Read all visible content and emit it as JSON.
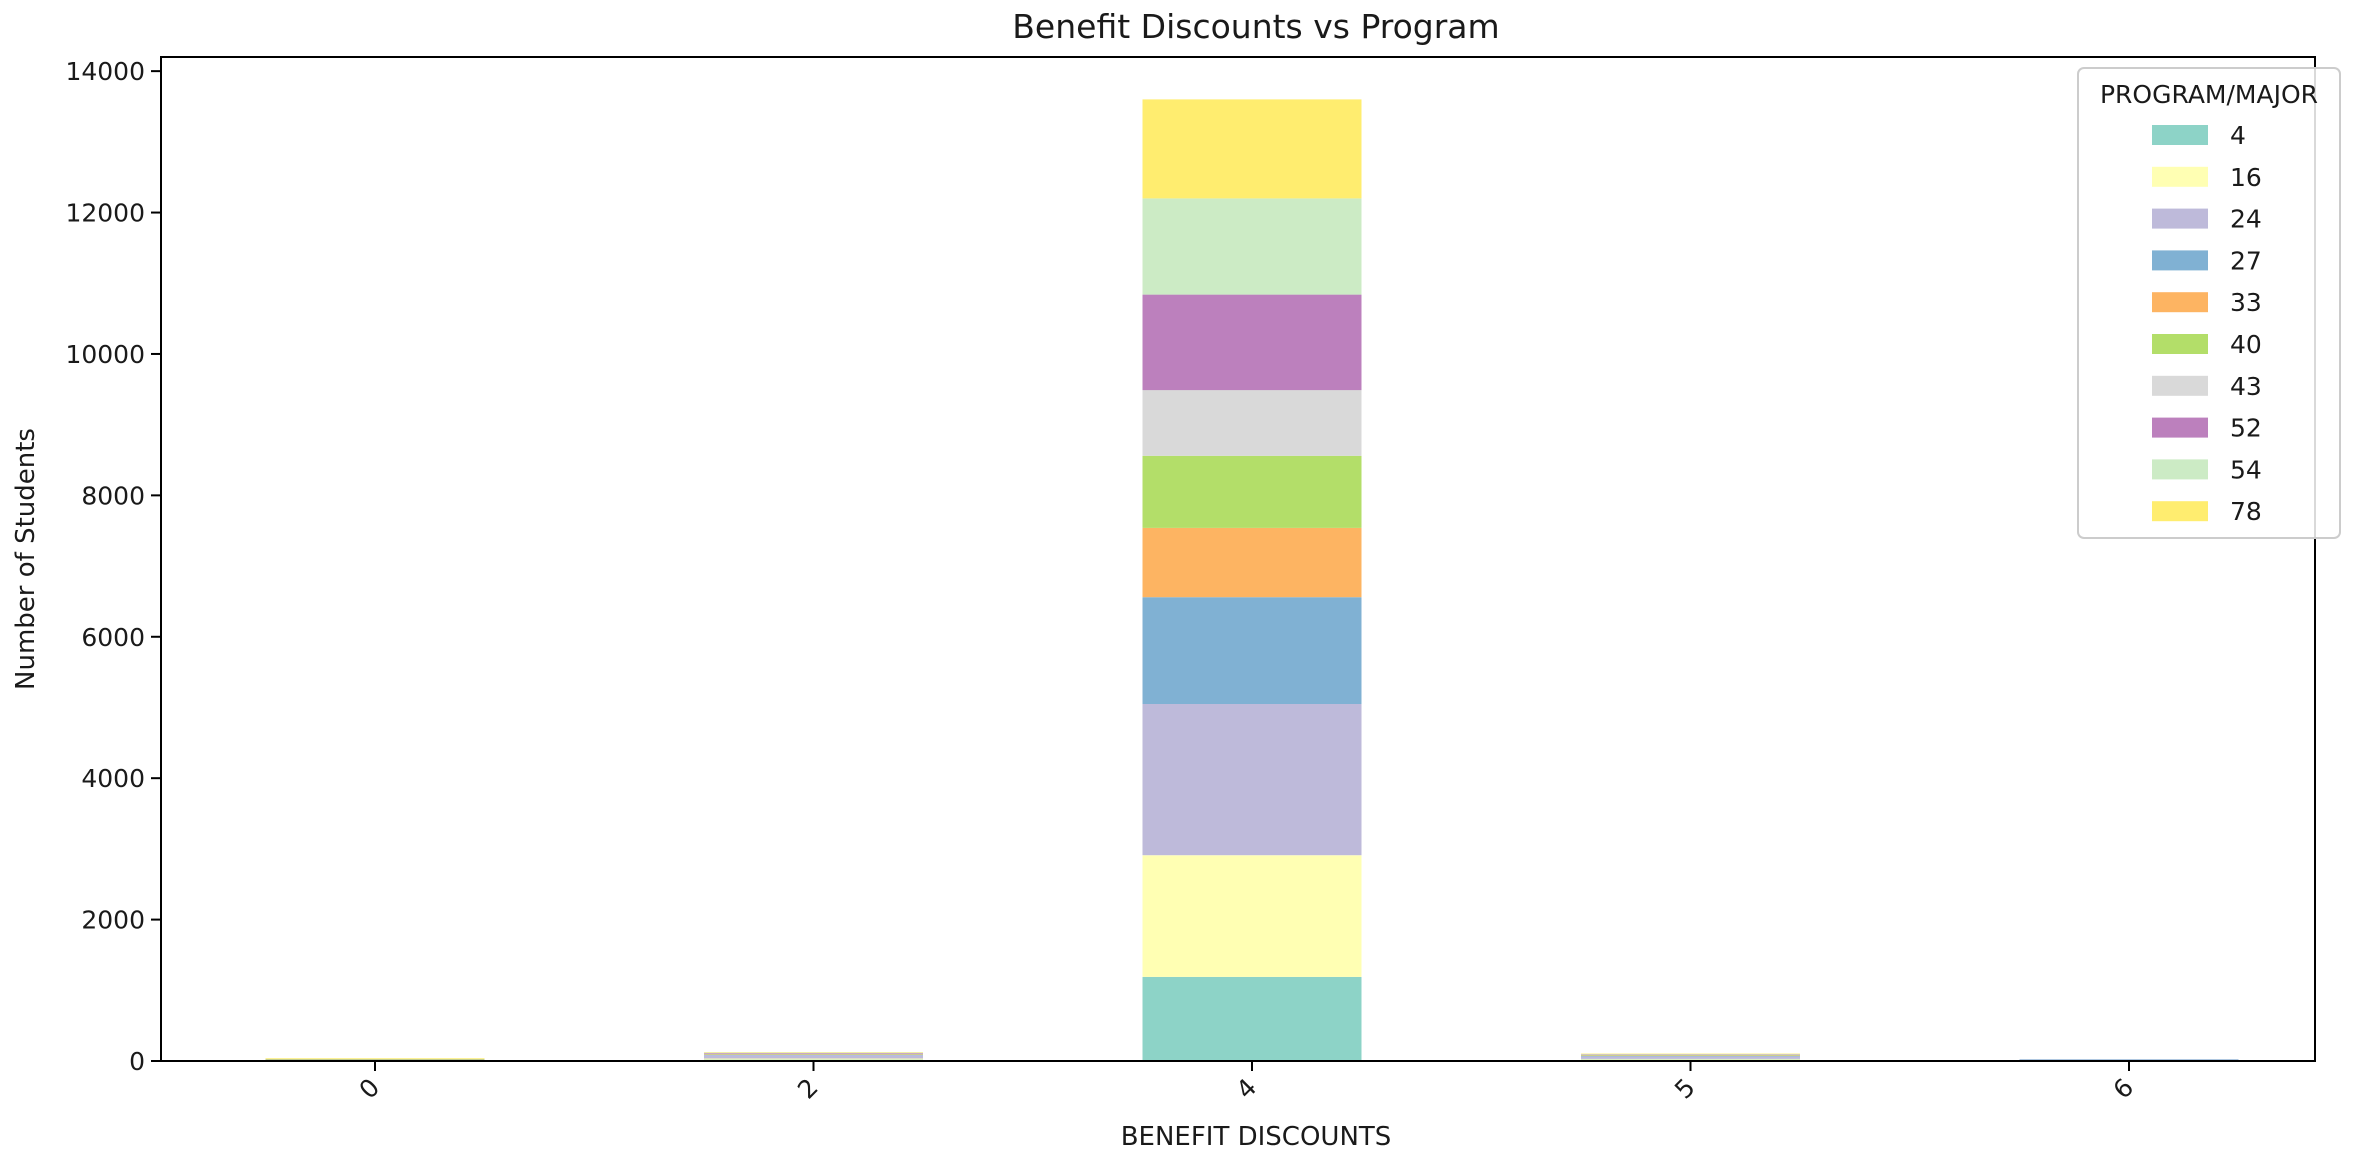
{
  "chart_data": {
    "type": "bar",
    "stacked": true,
    "title": "Benefit Discounts vs Program",
    "xlabel": "BENEFIT DISCOUNTS",
    "ylabel": "Number of Students",
    "ylim": [
      0,
      14200
    ],
    "yticks": [
      "0",
      "2000",
      "4000",
      "6000",
      "8000",
      "10000",
      "12000",
      "14000"
    ],
    "categories": [
      "0",
      "2",
      "4",
      "5",
      "6"
    ],
    "legend": {
      "title": "PROGRAM/MAJOR",
      "position": "top-right"
    },
    "grid": false,
    "series": [
      {
        "name": "4",
        "color": "#8dd3c7",
        "values": [
          5,
          20,
          1190,
          20,
          5
        ]
      },
      {
        "name": "16",
        "color": "#ffffb3",
        "values": [
          5,
          15,
          1720,
          10,
          5
        ]
      },
      {
        "name": "24",
        "color": "#bebada",
        "values": [
          5,
          45,
          2140,
          35,
          10
        ]
      },
      {
        "name": "27",
        "color": "#80b1d3",
        "values": [
          5,
          10,
          1510,
          10,
          5
        ]
      },
      {
        "name": "33",
        "color": "#fdb462",
        "values": [
          5,
          5,
          980,
          5,
          0
        ]
      },
      {
        "name": "40",
        "color": "#b3de69",
        "values": [
          5,
          5,
          1020,
          5,
          0
        ]
      },
      {
        "name": "43",
        "color": "#d9d9d9",
        "values": [
          0,
          5,
          930,
          5,
          0
        ]
      },
      {
        "name": "52",
        "color": "#bc80bd",
        "values": [
          0,
          10,
          1350,
          5,
          0
        ]
      },
      {
        "name": "54",
        "color": "#ccebc5",
        "values": [
          0,
          5,
          1360,
          5,
          0
        ]
      },
      {
        "name": "78",
        "color": "#ffed6f",
        "values": [
          10,
          5,
          1400,
          5,
          0
        ]
      }
    ]
  }
}
